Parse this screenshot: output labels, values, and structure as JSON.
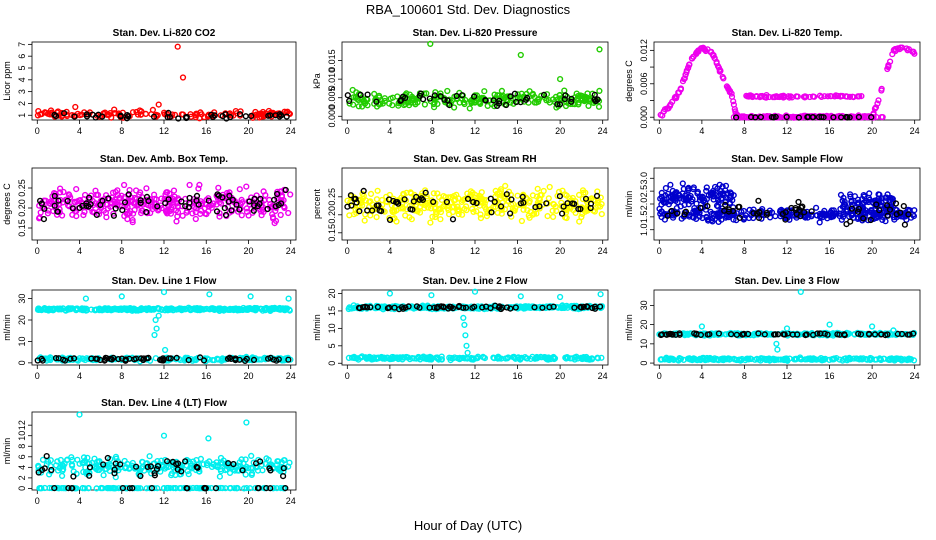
{
  "figure": {
    "suptitle": "RBA_100601  Std. Dev. Diagnostics",
    "xlabel": "Hour of Day (UTC)"
  },
  "chart_data": [
    {
      "type": "scatter",
      "title": "Stan. Dev. Li-820 CO2",
      "ylabel": "Licor ppm",
      "color": "#ff0000",
      "ylim": [
        0.6,
        7.2
      ],
      "yticks": [
        1,
        2,
        3,
        4,
        5,
        6,
        7
      ],
      "xticks": [
        0,
        4,
        8,
        12,
        16,
        20,
        24
      ],
      "xlim": [
        -0.5,
        24.5
      ],
      "bands": [
        {
          "center": 1.1,
          "spread": 0.45,
          "n": 140
        }
      ],
      "black_bands": [
        {
          "center": 0.95,
          "spread": 0.35,
          "n": 40
        }
      ],
      "outliers": [
        [
          13.3,
          6.8
        ],
        [
          13.8,
          4.2
        ],
        [
          11.5,
          1.9
        ],
        [
          3.6,
          1.7
        ]
      ]
    },
    {
      "type": "scatter",
      "title": "Stan. Dev. Li-820 Pressure",
      "ylabel": "kPa",
      "color": "#22cc00",
      "ylim": [
        -0.001,
        0.02
      ],
      "yticks": [
        0.0,
        0.005,
        0.01,
        0.015
      ],
      "ytick_labels": [
        "0.000",
        "0.005",
        "0.010",
        "0.015"
      ],
      "xticks": [
        0,
        4,
        8,
        12,
        16,
        20,
        24
      ],
      "xlim": [
        -0.5,
        24.5
      ],
      "bands": [
        {
          "center": 0.0045,
          "spread": 0.003,
          "n": 240
        }
      ],
      "black_bands": [
        {
          "center": 0.0045,
          "spread": 0.0025,
          "n": 45
        }
      ],
      "outliers": [
        [
          7.8,
          0.0195
        ],
        [
          16.3,
          0.0165
        ],
        [
          23.7,
          0.018
        ],
        [
          20,
          0.01
        ]
      ]
    },
    {
      "type": "scatter",
      "title": "Stan. Dev. Li-820 Temp.",
      "ylabel": "degrees C",
      "color": "#ee00ee",
      "ylim": [
        -0.0005,
        0.0135
      ],
      "yticks": [
        0.0,
        0.006,
        0.012
      ],
      "ytick_labels": [
        "0.000",
        "0.006",
        "0.012"
      ],
      "extra_ticks": [
        0.003,
        0.009
      ],
      "xticks": [
        0,
        4,
        8,
        12,
        16,
        20,
        24
      ],
      "xlim": [
        -0.5,
        24.5
      ],
      "curve": [
        [
          0,
          0
        ],
        [
          1,
          0.002
        ],
        [
          2,
          0.005
        ],
        [
          3,
          0.0105
        ],
        [
          4,
          0.0125
        ],
        [
          5,
          0.0115
        ],
        [
          6,
          0.007
        ],
        [
          6.8,
          0.004
        ],
        [
          7.2,
          0.0005
        ],
        [
          8,
          0
        ],
        [
          12,
          0
        ],
        [
          20,
          0
        ],
        [
          20.6,
          0.003
        ],
        [
          21.4,
          0.0085
        ],
        [
          22,
          0.012
        ],
        [
          23,
          0.0125
        ],
        [
          24,
          0.0115
        ]
      ],
      "bands": [
        {
          "center": 0.0037,
          "spread": 0.0003,
          "n": 70,
          "xrange": [
            8,
            19
          ]
        },
        {
          "center": 0.0,
          "spread": 0.0001,
          "n": 80,
          "xrange": [
            7,
            21
          ]
        }
      ],
      "black_bands": [
        {
          "center": 0.0,
          "spread": 0.0001,
          "n": 25,
          "xrange": [
            7,
            20
          ]
        }
      ]
    },
    {
      "type": "scatter",
      "title": "Stan. Dev. Amb. Box Temp.",
      "ylabel": "degrees C",
      "color": "#ee00ee",
      "ylim": [
        0.12,
        0.3
      ],
      "yticks": [
        0.15,
        0.2,
        0.25
      ],
      "ytick_labels": [
        "0.15",
        "0.20",
        "0.25"
      ],
      "xticks": [
        0,
        4,
        8,
        12,
        16,
        20,
        24
      ],
      "xlim": [
        -0.5,
        24.5
      ],
      "bands": [
        {
          "center": 0.21,
          "spread": 0.055,
          "n": 360
        }
      ],
      "black_bands": [
        {
          "center": 0.21,
          "spread": 0.045,
          "n": 70
        }
      ]
    },
    {
      "type": "scatter",
      "title": "Stan. Dev. Gas Stream RH",
      "ylabel": "percent",
      "color": "#ffff00",
      "ylim": [
        0.13,
        0.33
      ],
      "yticks": [
        0.15,
        0.2,
        0.25
      ],
      "ytick_labels": [
        "0.15",
        "0.20",
        "0.25"
      ],
      "xticks": [
        0,
        4,
        8,
        12,
        16,
        20,
        24
      ],
      "xlim": [
        -0.5,
        24.5
      ],
      "bands": [
        {
          "center": 0.23,
          "spread": 0.06,
          "n": 360
        }
      ],
      "black_bands": [
        {
          "center": 0.23,
          "spread": 0.05,
          "n": 60
        }
      ]
    },
    {
      "type": "scatter",
      "title": "Stan. Dev. Sample Flow",
      "ylabel": "ml/min",
      "color": "#0000cc",
      "ylim": [
        0.6,
        3.4
      ],
      "yticks": [
        1,
        1.5,
        2,
        2.5,
        3
      ],
      "ytick_labels": [
        "1.0",
        "1.5",
        "2.0",
        "2.5",
        "3.0"
      ],
      "xticks": [
        0,
        4,
        8,
        12,
        16,
        20,
        24
      ],
      "xlim": [
        -0.5,
        24.5
      ],
      "bands": [
        {
          "center": 1.6,
          "spread": 0.35,
          "n": 300
        },
        {
          "center": 2.3,
          "spread": 0.6,
          "n": 120,
          "xrange": [
            0,
            7
          ]
        },
        {
          "center": 2.1,
          "spread": 0.5,
          "n": 70,
          "xrange": [
            17,
            22
          ]
        }
      ],
      "black_bands": [
        {
          "center": 1.7,
          "spread": 0.6,
          "n": 55
        }
      ]
    },
    {
      "type": "scatter",
      "title": "Stan. Dev. Line 1 Flow",
      "ylabel": "ml/min",
      "color": "#00eeee",
      "ylim": [
        -1,
        34
      ],
      "yticks": [
        0,
        10,
        20,
        30
      ],
      "xticks": [
        0,
        4,
        8,
        12,
        16,
        20,
        24
      ],
      "xlim": [
        -0.5,
        24.5
      ],
      "bands": [
        {
          "center": 25,
          "spread": 0.9,
          "n": 300
        },
        {
          "center": 1.8,
          "spread": 1.2,
          "n": 160
        }
      ],
      "black_bands": [
        {
          "center": 1.8,
          "spread": 1.2,
          "n": 60
        }
      ],
      "outliers": [
        [
          11.2,
          20
        ],
        [
          11.3,
          16
        ],
        [
          11.1,
          13
        ],
        [
          11.5,
          22
        ],
        [
          12,
          33
        ],
        [
          4.6,
          30
        ],
        [
          8,
          31
        ],
        [
          16.3,
          32
        ],
        [
          20.2,
          31
        ],
        [
          23.8,
          30
        ],
        [
          12.1,
          6
        ]
      ]
    },
    {
      "type": "scatter",
      "title": "Stan. Dev. Line 2 Flow",
      "ylabel": "ml/min",
      "color": "#00eeee",
      "ylim": [
        -0.5,
        21
      ],
      "yticks": [
        0,
        5,
        10,
        15,
        20
      ],
      "xticks": [
        0,
        4,
        8,
        12,
        16,
        20,
        24
      ],
      "xlim": [
        -0.5,
        24.5
      ],
      "bands": [
        {
          "center": 16,
          "spread": 0.7,
          "n": 260
        },
        {
          "center": 1.5,
          "spread": 0.7,
          "n": 200
        }
      ],
      "black_bands": [
        {
          "center": 16,
          "spread": 0.6,
          "n": 60
        }
      ],
      "outliers": [
        [
          11,
          11
        ],
        [
          11.1,
          8
        ],
        [
          10.9,
          13
        ],
        [
          11.2,
          5
        ],
        [
          11.3,
          3
        ],
        [
          12,
          20.5
        ],
        [
          4,
          20
        ],
        [
          7.9,
          19.5
        ],
        [
          16.3,
          19.2
        ],
        [
          23.8,
          19.8
        ],
        [
          20,
          19
        ]
      ]
    },
    {
      "type": "scatter",
      "title": "Stan. Dev. Line 3 Flow",
      "ylabel": "ml/min",
      "color": "#00eeee",
      "ylim": [
        -1,
        38
      ],
      "yticks": [
        0,
        10,
        20,
        30
      ],
      "xticks": [
        0,
        4,
        8,
        12,
        16,
        20,
        24
      ],
      "xlim": [
        -0.5,
        24.5
      ],
      "bands": [
        {
          "center": 15,
          "spread": 0.9,
          "n": 240
        },
        {
          "center": 2,
          "spread": 1.0,
          "n": 220
        }
      ],
      "black_bands": [
        {
          "center": 15,
          "spread": 0.8,
          "n": 60
        }
      ],
      "outliers": [
        [
          13.3,
          37
        ],
        [
          11,
          10
        ],
        [
          11.1,
          7
        ],
        [
          4,
          19
        ],
        [
          12,
          18
        ],
        [
          16,
          20
        ],
        [
          20,
          19
        ],
        [
          22,
          17
        ]
      ]
    },
    {
      "type": "scatter",
      "title": "Stan. Dev. Line 4 (LT) Flow",
      "ylabel": "ml/min",
      "color": "#00eeee",
      "ylim": [
        -0.3,
        14.5
      ],
      "yticks": [
        0,
        2,
        4,
        6,
        8,
        10,
        12
      ],
      "xticks": [
        0,
        4,
        8,
        12,
        16,
        20,
        24
      ],
      "xlim": [
        -0.5,
        24.5
      ],
      "bands": [
        {
          "center": 4.2,
          "spread": 2.4,
          "n": 260
        },
        {
          "center": 0.05,
          "spread": 0.05,
          "n": 120
        }
      ],
      "black_bands": [
        {
          "center": 4,
          "spread": 2.6,
          "n": 40
        },
        {
          "center": 0.05,
          "spread": 0.05,
          "n": 20
        }
      ],
      "outliers": [
        [
          4,
          14
        ],
        [
          19.8,
          12.5
        ],
        [
          12,
          10
        ],
        [
          16.2,
          9.5
        ]
      ]
    }
  ]
}
